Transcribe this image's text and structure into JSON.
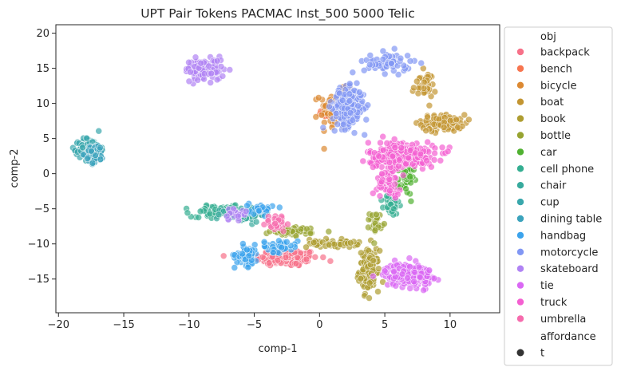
{
  "chart_data": {
    "type": "scatter",
    "title": "UPT Pair Tokens PACMAC Inst_500 5000 Telic",
    "xlabel": "comp-1",
    "ylabel": "comp-2",
    "xlim": [
      -20.2,
      13.8
    ],
    "ylim": [
      -19.8,
      21.2
    ],
    "xticks": [
      -20,
      -15,
      -10,
      -5,
      0,
      5,
      10
    ],
    "yticks": [
      -15,
      -10,
      -5,
      0,
      5,
      10,
      15,
      20
    ],
    "grid": false,
    "marker_alpha": 0.7,
    "legend": {
      "placement": "outside-right",
      "hue_title": "obj",
      "style_title": "affordance",
      "style_entries": [
        {
          "label": "t",
          "color": "#333333"
        }
      ]
    },
    "series": [
      {
        "name": "backpack",
        "color": "#f77189",
        "clusters": [
          {
            "cx": -2.5,
            "cy": -12.0,
            "sx": 1.6,
            "sy": 0.8,
            "n": 150
          }
        ]
      },
      {
        "name": "bench",
        "color": "#f7754f",
        "clusters": [
          {
            "cx": 0.6,
            "cy": 8.6,
            "sx": 0.5,
            "sy": 0.4,
            "n": 20
          }
        ]
      },
      {
        "name": "bicycle",
        "color": "#dc8932",
        "clusters": [
          {
            "cx": 1.4,
            "cy": 9.2,
            "sx": 0.9,
            "sy": 1.8,
            "n": 90
          }
        ]
      },
      {
        "name": "boat",
        "color": "#c39532",
        "clusters": [
          {
            "cx": 9.5,
            "cy": 7.2,
            "sx": 1.1,
            "sy": 0.8,
            "n": 110
          },
          {
            "cx": 8.0,
            "cy": 12.5,
            "sx": 0.6,
            "sy": 1.3,
            "n": 35
          }
        ]
      },
      {
        "name": "book",
        "color": "#ae9d31",
        "clusters": [
          {
            "cx": 3.8,
            "cy": -13.8,
            "sx": 0.5,
            "sy": 1.9,
            "n": 120
          },
          {
            "cx": 1.0,
            "cy": -9.9,
            "sx": 1.3,
            "sy": 0.4,
            "n": 50
          }
        ]
      },
      {
        "name": "bottle",
        "color": "#97a431",
        "clusters": [
          {
            "cx": -2.0,
            "cy": -8.2,
            "sx": 1.2,
            "sy": 0.4,
            "n": 50
          },
          {
            "cx": 4.3,
            "cy": -7.0,
            "sx": 0.3,
            "sy": 1.0,
            "n": 25
          }
        ]
      },
      {
        "name": "car",
        "color": "#50b131",
        "clusters": [
          {
            "cx": 6.6,
            "cy": -1.0,
            "sx": 0.4,
            "sy": 1.3,
            "n": 40
          }
        ]
      },
      {
        "name": "cell phone",
        "color": "#34ae91",
        "clusters": [
          {
            "cx": -7.5,
            "cy": -5.4,
            "sx": 1.5,
            "sy": 0.5,
            "n": 110
          },
          {
            "cx": 5.5,
            "cy": -4.5,
            "sx": 0.4,
            "sy": 1.0,
            "n": 40
          }
        ]
      },
      {
        "name": "chair",
        "color": "#37aa9d",
        "clusters": [
          {
            "cx": -6.0,
            "cy": -5.8,
            "sx": 1.2,
            "sy": 0.7,
            "n": 50
          }
        ]
      },
      {
        "name": "cup",
        "color": "#39a7ac",
        "clusters": [
          {
            "cx": -17.6,
            "cy": 3.5,
            "sx": 0.55,
            "sy": 1.0,
            "n": 180
          }
        ]
      },
      {
        "name": "dining table",
        "color": "#3ba3bc",
        "clusters": [
          {
            "cx": -17.2,
            "cy": 2.8,
            "sx": 0.45,
            "sy": 0.9,
            "n": 60
          }
        ]
      },
      {
        "name": "handbag",
        "color": "#3ba3ec",
        "clusters": [
          {
            "cx": -5.6,
            "cy": -11.6,
            "sx": 0.6,
            "sy": 1.0,
            "n": 70
          },
          {
            "cx": -3.0,
            "cy": -10.3,
            "sx": 0.9,
            "sy": 0.6,
            "n": 40
          },
          {
            "cx": -4.5,
            "cy": -5.0,
            "sx": 0.6,
            "sy": 0.6,
            "n": 25
          }
        ]
      },
      {
        "name": "motorcycle",
        "color": "#8197f4",
        "clusters": [
          {
            "cx": 2.2,
            "cy": 9.4,
            "sx": 0.8,
            "sy": 1.8,
            "n": 220
          },
          {
            "cx": 5.2,
            "cy": 15.8,
            "sx": 1.2,
            "sy": 1.0,
            "n": 60
          }
        ]
      },
      {
        "name": "skateboard",
        "color": "#b083f4",
        "clusters": [
          {
            "cx": -8.8,
            "cy": 14.8,
            "sx": 1.0,
            "sy": 1.0,
            "n": 120
          },
          {
            "cx": -6.5,
            "cy": -5.8,
            "sx": 0.6,
            "sy": 0.6,
            "n": 20
          }
        ]
      },
      {
        "name": "tie",
        "color": "#da68f4",
        "clusters": [
          {
            "cx": 6.8,
            "cy": -14.4,
            "sx": 1.2,
            "sy": 1.1,
            "n": 190
          }
        ]
      },
      {
        "name": "truck",
        "color": "#f45fd1",
        "clusters": [
          {
            "cx": 6.3,
            "cy": 2.6,
            "sx": 1.7,
            "sy": 1.3,
            "n": 260
          },
          {
            "cx": 5.3,
            "cy": -1.5,
            "sx": 0.6,
            "sy": 1.0,
            "n": 40
          }
        ]
      },
      {
        "name": "umbrella",
        "color": "#f66bad",
        "clusters": [
          {
            "cx": -3.2,
            "cy": -7.0,
            "sx": 0.6,
            "sy": 0.8,
            "n": 35
          }
        ]
      }
    ]
  }
}
